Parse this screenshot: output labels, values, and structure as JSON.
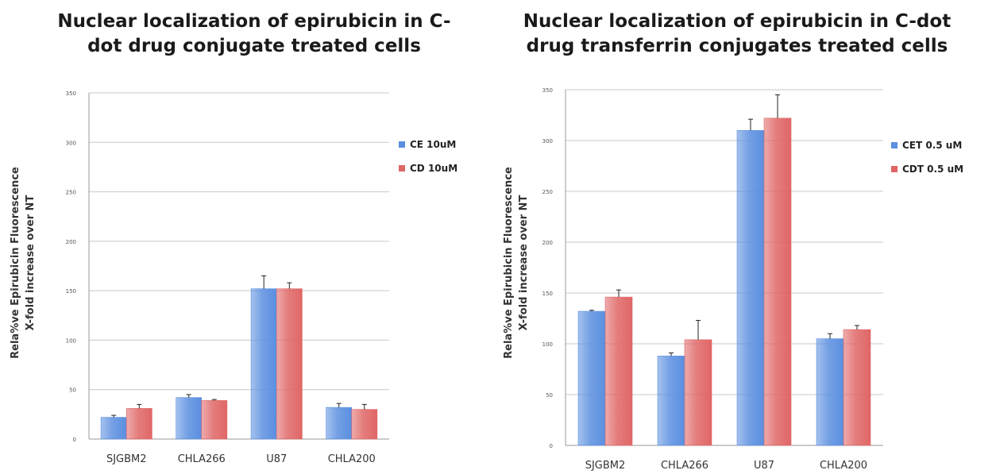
{
  "chart_data": [
    {
      "type": "bar",
      "title": "Nuclear localization of epirubicin in C-\ndot drug conjugate treated cells",
      "ylabel": "Rela%ve Epirubicin Fluorescence\nX-fold increase over NT",
      "xlabel": "",
      "ylim": [
        0,
        350
      ],
      "yticks": [
        0,
        50,
        100,
        150,
        200,
        250,
        300,
        350
      ],
      "grid": true,
      "legend": "right",
      "categories": [
        "SJGBM2",
        "CHLA266",
        "U87",
        "CHLA200"
      ],
      "series": [
        {
          "name": "CE 10uM",
          "color": "#5b8fe0",
          "values": [
            22,
            42,
            152,
            32
          ],
          "errors": [
            2,
            3,
            13,
            4
          ]
        },
        {
          "name": "CD 10uM",
          "color": "#e06666",
          "values": [
            31,
            39,
            152,
            30
          ],
          "errors": [
            4,
            1,
            6,
            5
          ]
        }
      ]
    },
    {
      "type": "bar",
      "title": "Nuclear localization of epirubicin in C-dot\ndrug transferrin conjugates treated cells",
      "ylabel": "Rela%ve Epirubicin Fluorescence\nX-fold increase over NT",
      "xlabel": "",
      "ylim": [
        0,
        350
      ],
      "yticks": [
        0,
        50,
        100,
        150,
        200,
        250,
        300,
        350
      ],
      "grid": true,
      "legend": "right",
      "categories": [
        "SJGBM2",
        "CHLA266",
        "U87",
        "CHLA200"
      ],
      "series": [
        {
          "name": "CET 0.5 uM",
          "color": "#5b8fe0",
          "values": [
            132,
            88,
            310,
            105
          ],
          "errors": [
            1,
            3,
            11,
            5
          ]
        },
        {
          "name": "CDT 0.5 uM",
          "color": "#e06666",
          "values": [
            146,
            104,
            322,
            114
          ],
          "errors": [
            7,
            19,
            23,
            4
          ]
        }
      ]
    }
  ]
}
